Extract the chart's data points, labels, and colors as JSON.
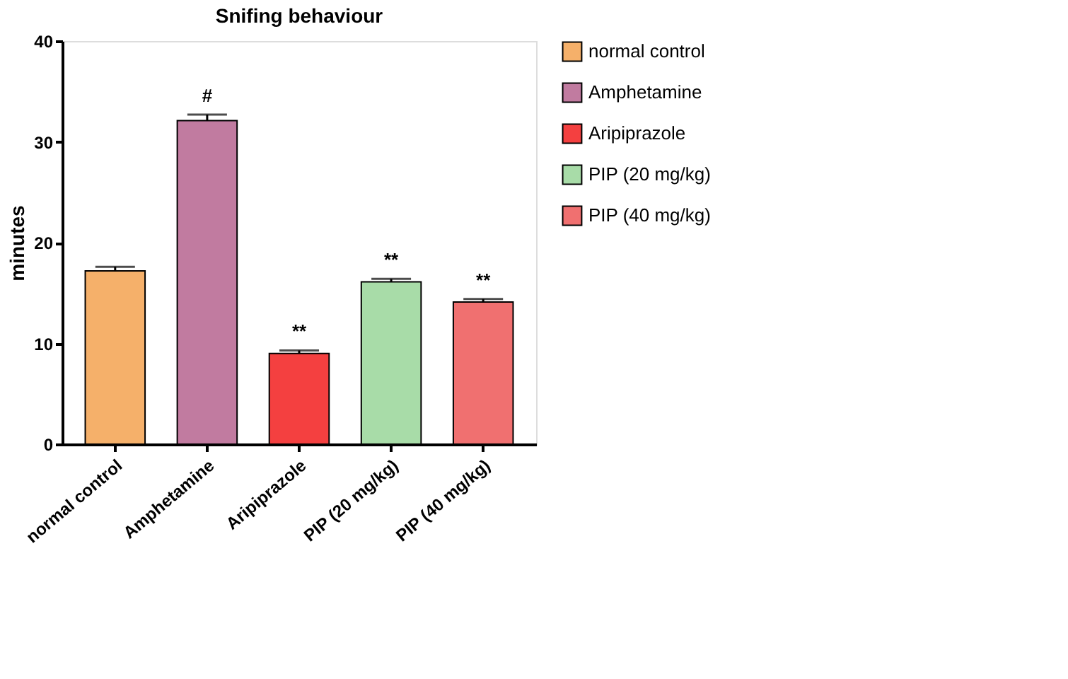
{
  "chart_data": {
    "type": "bar",
    "title": "Snifing behaviour",
    "ylabel": "minutes",
    "categories": [
      "normal control",
      "Amphetamine",
      "Aripiprazole",
      "PIP (20 mg/kg)",
      "PIP (40 mg/kg)"
    ],
    "series": [
      {
        "name": "normal control",
        "color": "#f5b06a",
        "values": [
          17.2,
          null,
          null,
          null,
          null
        ],
        "errors": [
          0.4,
          null,
          null,
          null,
          null
        ]
      },
      {
        "name": "Amphetamine",
        "color": "#c17ba0",
        "values": [
          null,
          32.1,
          null,
          null,
          null
        ],
        "errors": [
          null,
          0.6,
          null,
          null,
          null
        ],
        "value_labels": [
          null,
          "#",
          null,
          null,
          null
        ]
      },
      {
        "name": "Aripiprazole",
        "color": "#f44040",
        "values": [
          null,
          null,
          9.0,
          null,
          null
        ],
        "errors": [
          null,
          null,
          0.3,
          null,
          null
        ],
        "value_labels": [
          null,
          null,
          "**",
          null,
          null
        ]
      },
      {
        "name": "PIP (20 mg/kg)",
        "color": "#a8dca8",
        "values": [
          null,
          null,
          null,
          16.1,
          null
        ],
        "errors": [
          null,
          null,
          null,
          0.3,
          null
        ],
        "value_labels": [
          null,
          null,
          null,
          "**",
          null
        ]
      },
      {
        "name": "PIP (40 mg/kg)",
        "color": "#f07070",
        "values": [
          null,
          null,
          null,
          null,
          14.1
        ],
        "errors": [
          null,
          null,
          null,
          null,
          0.3
        ],
        "value_labels": [
          null,
          null,
          null,
          null,
          "**"
        ]
      }
    ],
    "ylim": [
      0,
      40
    ],
    "yticks": [
      0,
      10,
      20,
      30,
      40
    ],
    "legend": "right",
    "grid": false
  }
}
